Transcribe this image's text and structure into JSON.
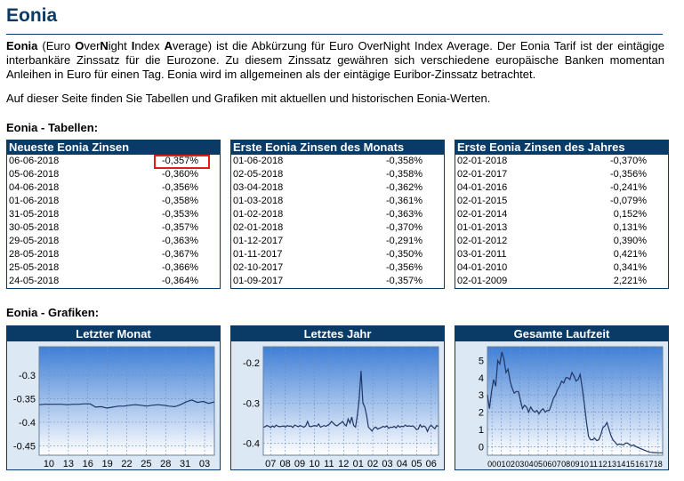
{
  "page": {
    "title": "Eonia",
    "intro": {
      "term": "Eonia",
      "acr_parts": [
        [
          "(Euro ",
          false
        ],
        [
          "O",
          true
        ],
        [
          "ver",
          false
        ],
        [
          "N",
          true
        ],
        [
          "ight ",
          false
        ],
        [
          "I",
          true
        ],
        [
          "ndex ",
          false
        ],
        [
          "A",
          true
        ],
        [
          "verage)",
          false
        ]
      ],
      "text": " ist die Abkürzung für Euro OverNight Index Average. Der Eonia Tarif ist der eintägige interbankäre Zinssatz für die Eurozone. Zu diesem Zinssatz gewähren sich verschiedene europäische Banken momentan Anleihen in Euro für einen Tag. Eonia wird im allgemeinen als der eintägige Euribor-Zinssatz betrachtet."
    },
    "subtitle": "Auf dieser Seite finden Sie Tabellen und Grafiken mit aktuellen und historischen Eonia-Werten.",
    "tables_heading": "Eonia - Tabellen:",
    "charts_heading": "Eonia - Grafiken:"
  },
  "tables": [
    {
      "title": "Neueste Eonia Zinsen",
      "rows": [
        [
          "06-06-2018",
          "-0,357%"
        ],
        [
          "05-06-2018",
          "-0,360%"
        ],
        [
          "04-06-2018",
          "-0,356%"
        ],
        [
          "01-06-2018",
          "-0,358%"
        ],
        [
          "31-05-2018",
          "-0,353%"
        ],
        [
          "30-05-2018",
          "-0,357%"
        ],
        [
          "29-05-2018",
          "-0,363%"
        ],
        [
          "28-05-2018",
          "-0,367%"
        ],
        [
          "25-05-2018",
          "-0,366%"
        ],
        [
          "24-05-2018",
          "-0,364%"
        ]
      ]
    },
    {
      "title": "Erste Eonia Zinsen des Monats",
      "rows": [
        [
          "01-06-2018",
          "-0,358%"
        ],
        [
          "02-05-2018",
          "-0,358%"
        ],
        [
          "03-04-2018",
          "-0,362%"
        ],
        [
          "01-03-2018",
          "-0,361%"
        ],
        [
          "01-02-2018",
          "-0,363%"
        ],
        [
          "02-01-2018",
          "-0,370%"
        ],
        [
          "01-12-2017",
          "-0,291%"
        ],
        [
          "01-11-2017",
          "-0,350%"
        ],
        [
          "02-10-2017",
          "-0,356%"
        ],
        [
          "01-09-2017",
          "-0,357%"
        ]
      ]
    },
    {
      "title": "Erste Eonia Zinsen des Jahres",
      "rows": [
        [
          "02-01-2018",
          "-0,370%"
        ],
        [
          "02-01-2017",
          "-0,356%"
        ],
        [
          "04-01-2016",
          "-0,241%"
        ],
        [
          "02-01-2015",
          "-0,079%"
        ],
        [
          "02-01-2014",
          "0,152%"
        ],
        [
          "01-01-2013",
          "0,131%"
        ],
        [
          "02-01-2012",
          "0,390%"
        ],
        [
          "03-01-2011",
          "0,421%"
        ],
        [
          "04-01-2010",
          "0,341%"
        ],
        [
          "02-01-2009",
          "2,221%"
        ]
      ]
    }
  ],
  "chart_data": [
    {
      "type": "line",
      "title": "Letzter Monat",
      "ylim": [
        -0.47,
        -0.24
      ],
      "yticks": [
        -0.3,
        -0.35,
        -0.4,
        -0.45
      ],
      "ytick_labels": [
        "-0.3",
        "-0.35",
        "-0.4",
        "-0.45"
      ],
      "xtick_labels": [
        "10",
        "13",
        "16",
        "19",
        "22",
        "25",
        "28",
        "31",
        "03"
      ],
      "grid": true,
      "y": [
        -0.363,
        -0.362,
        -0.362,
        -0.362,
        -0.362,
        -0.363,
        -0.362,
        -0.362,
        -0.361,
        -0.361,
        -0.368,
        -0.367,
        -0.37,
        -0.368,
        -0.366,
        -0.366,
        -0.364,
        -0.363,
        -0.364,
        -0.366,
        -0.364,
        -0.363,
        -0.364,
        -0.366,
        -0.367,
        -0.363,
        -0.357,
        -0.353,
        -0.358,
        -0.356,
        -0.36,
        -0.357
      ]
    },
    {
      "type": "line",
      "title": "Letztes Jahr",
      "ylim": [
        -0.43,
        -0.16
      ],
      "yticks": [
        -0.2,
        -0.3,
        -0.4
      ],
      "ytick_labels": [
        "-0.2",
        "-0.3",
        "-0.4"
      ],
      "xtick_labels": [
        "07",
        "08",
        "09",
        "10",
        "11",
        "12",
        "01",
        "02",
        "03",
        "04",
        "05",
        "06"
      ],
      "grid": true,
      "y": [
        -0.36,
        -0.359,
        -0.356,
        -0.358,
        -0.361,
        -0.357,
        -0.36,
        -0.355,
        -0.358,
        -0.359,
        -0.358,
        -0.357,
        -0.36,
        -0.356,
        -0.358,
        -0.357,
        -0.361,
        -0.355,
        -0.357,
        -0.359,
        -0.356,
        -0.358,
        -0.36,
        -0.357,
        -0.346,
        -0.358,
        -0.359,
        -0.357,
        -0.356,
        -0.358,
        -0.352,
        -0.36,
        -0.358,
        -0.356,
        -0.358,
        -0.355,
        -0.352,
        -0.346,
        -0.35,
        -0.355,
        -0.357,
        -0.353,
        -0.35,
        -0.346,
        -0.353,
        -0.357,
        -0.34,
        -0.35,
        -0.335,
        -0.356,
        -0.36,
        -0.33,
        -0.291,
        -0.22,
        -0.3,
        -0.31,
        -0.33,
        -0.36,
        -0.365,
        -0.37,
        -0.362,
        -0.36,
        -0.365,
        -0.363,
        -0.361,
        -0.358,
        -0.36,
        -0.357,
        -0.363,
        -0.36,
        -0.361,
        -0.358,
        -0.362,
        -0.356,
        -0.36,
        -0.358,
        -0.359,
        -0.355,
        -0.358,
        -0.357,
        -0.358,
        -0.357,
        -0.36,
        -0.366,
        -0.365,
        -0.354,
        -0.36,
        -0.357,
        -0.36,
        -0.371,
        -0.36,
        -0.355,
        -0.36,
        -0.364,
        -0.356,
        -0.358
      ]
    },
    {
      "type": "line",
      "title": "Gesamte Laufzeit",
      "ylim": [
        -0.5,
        5.8
      ],
      "yticks": [
        0,
        1,
        2,
        3,
        4,
        5
      ],
      "ytick_labels": [
        "0",
        "1",
        "2",
        "3",
        "4",
        "5"
      ],
      "xtick_labels": [
        "00",
        "01",
        "02",
        "03",
        "04",
        "05",
        "06",
        "07",
        "08",
        "09",
        "10",
        "11",
        "12",
        "13",
        "14",
        "15",
        "16",
        "17",
        "18"
      ],
      "grid": true,
      "y": [
        3.0,
        2.2,
        3.2,
        3.9,
        3.5,
        5.0,
        4.8,
        5.5,
        5.1,
        4.3,
        4.5,
        3.8,
        3.4,
        3.1,
        3.2,
        3.2,
        2.7,
        2.2,
        2.4,
        2.3,
        2.0,
        2.3,
        2.1,
        2.0,
        2.1,
        1.9,
        2.1,
        2.2,
        2.0,
        2.1,
        2.1,
        2.4,
        2.8,
        3.0,
        3.3,
        3.5,
        3.8,
        3.7,
        4.0,
        4.0,
        3.9,
        4.3,
        4.1,
        3.8,
        3.9,
        4.2,
        3.4,
        2.5,
        1.5,
        0.6,
        0.4,
        0.4,
        0.5,
        0.35,
        0.4,
        0.7,
        1.1,
        1.2,
        1.4,
        1.0,
        0.6,
        0.37,
        0.25,
        0.1,
        0.15,
        0.12,
        0.1,
        0.2,
        0.2,
        0.1,
        0.05,
        0.1,
        0.0,
        -0.05,
        -0.1,
        -0.15,
        -0.2,
        -0.25,
        -0.3,
        -0.33,
        -0.34,
        -0.35,
        -0.35,
        -0.36,
        -0.36,
        -0.36
      ]
    }
  ]
}
